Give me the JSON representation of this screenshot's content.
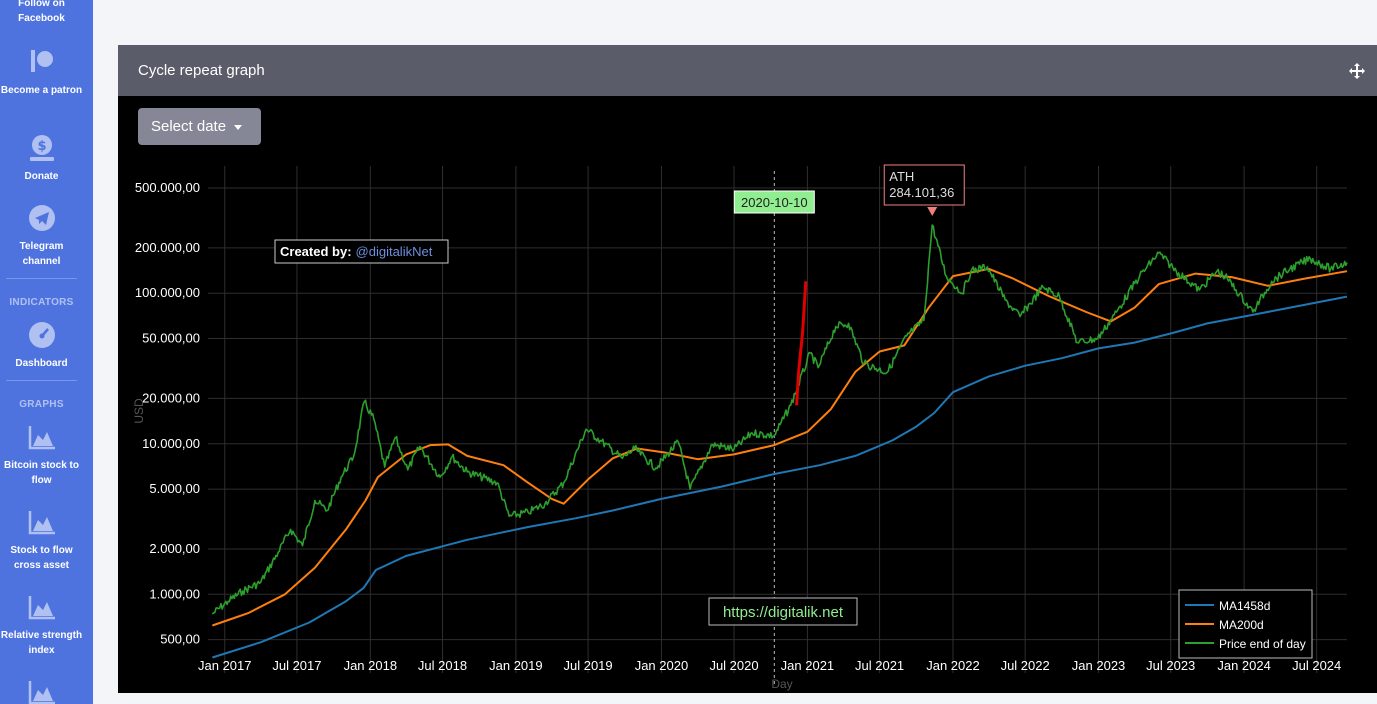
{
  "sidebar": {
    "top_partial": "Follow on\nFacebook",
    "items": [
      {
        "label": "Become a patron",
        "icon": "patreon-icon"
      },
      {
        "label": "Donate",
        "icon": "donate-icon"
      },
      {
        "label": "Telegram channel",
        "icon": "telegram-icon"
      }
    ],
    "indicators_heading": "INDICATORS",
    "indicators": [
      {
        "label": "Dashboard",
        "icon": "dashboard-gauge-icon"
      }
    ],
    "graphs_heading": "GRAPHS",
    "graphs": [
      {
        "label": "Bitcoin stock to flow",
        "icon": "area-chart-icon"
      },
      {
        "label": "Stock to flow cross asset",
        "icon": "area-chart-icon"
      },
      {
        "label": "Relative strength index",
        "icon": "area-chart-icon"
      }
    ]
  },
  "panel": {
    "title": "Cycle repeat graph",
    "select_date_label": "Select date"
  },
  "colors": {
    "sidebar": "#4e73df",
    "ma1458": "#1f77b4",
    "ma200": "#ff7f0e",
    "price": "#2ca02c",
    "projection": "#e00000"
  },
  "chart_data": {
    "type": "line",
    "y_scale": "log",
    "ylabel": "USD",
    "xlabel": "Day",
    "x_range": [
      "2016-11-20",
      "2024-09-15"
    ],
    "y_range": [
      300,
      700000
    ],
    "y_ticks": [
      {
        "value": 500,
        "label": "500,00"
      },
      {
        "value": 1000,
        "label": "1.000,00"
      },
      {
        "value": 2000,
        "label": "2.000,00"
      },
      {
        "value": 5000,
        "label": "5.000,00"
      },
      {
        "value": 10000,
        "label": "10.000,00"
      },
      {
        "value": 20000,
        "label": "20.000,00"
      },
      {
        "value": 50000,
        "label": "50.000,00"
      },
      {
        "value": 100000,
        "label": "100.000,00"
      },
      {
        "value": 200000,
        "label": "200.000,00"
      },
      {
        "value": 500000,
        "label": "500.000,00"
      }
    ],
    "x_ticks": [
      {
        "date": "2017-01-01",
        "label": "Jan 2017"
      },
      {
        "date": "2017-07-01",
        "label": "Jul 2017"
      },
      {
        "date": "2018-01-01",
        "label": "Jan 2018"
      },
      {
        "date": "2018-07-01",
        "label": "Jul 2018"
      },
      {
        "date": "2019-01-01",
        "label": "Jan 2019"
      },
      {
        "date": "2019-07-01",
        "label": "Jul 2019"
      },
      {
        "date": "2020-01-01",
        "label": "Jan 2020"
      },
      {
        "date": "2020-07-01",
        "label": "Jul 2020"
      },
      {
        "date": "2021-01-01",
        "label": "Jan 2021"
      },
      {
        "date": "2021-07-01",
        "label": "Jul 2021"
      },
      {
        "date": "2022-01-01",
        "label": "Jan 2022"
      },
      {
        "date": "2022-07-01",
        "label": "Jul 2022"
      },
      {
        "date": "2023-01-01",
        "label": "Jan 2023"
      },
      {
        "date": "2023-07-01",
        "label": "Jul 2023"
      },
      {
        "date": "2024-01-01",
        "label": "Jan 2024"
      },
      {
        "date": "2024-07-01",
        "label": "Jul 2024"
      }
    ],
    "series": [
      {
        "name": "MA1458d",
        "color": "#1f77b4",
        "points": [
          [
            "2016-12-01",
            380
          ],
          [
            "2017-04-01",
            480
          ],
          [
            "2017-08-01",
            650
          ],
          [
            "2017-11-01",
            900
          ],
          [
            "2017-12-15",
            1100
          ],
          [
            "2018-01-15",
            1450
          ],
          [
            "2018-04-01",
            1800
          ],
          [
            "2018-09-01",
            2300
          ],
          [
            "2019-02-01",
            2800
          ],
          [
            "2019-06-01",
            3200
          ],
          [
            "2019-09-01",
            3600
          ],
          [
            "2020-01-01",
            4300
          ],
          [
            "2020-06-01",
            5200
          ],
          [
            "2020-10-10",
            6300
          ],
          [
            "2021-02-01",
            7200
          ],
          [
            "2021-05-01",
            8300
          ],
          [
            "2021-08-01",
            10500
          ],
          [
            "2021-10-01",
            13000
          ],
          [
            "2021-11-15",
            16000
          ],
          [
            "2022-01-01",
            22000
          ],
          [
            "2022-04-01",
            28000
          ],
          [
            "2022-07-01",
            33000
          ],
          [
            "2022-10-01",
            37000
          ],
          [
            "2023-01-01",
            43000
          ],
          [
            "2023-04-01",
            47000
          ],
          [
            "2023-07-01",
            54000
          ],
          [
            "2023-10-01",
            63000
          ],
          [
            "2024-01-01",
            70000
          ],
          [
            "2024-04-01",
            78000
          ],
          [
            "2024-09-15",
            95000
          ]
        ]
      },
      {
        "name": "MA200d",
        "color": "#ff7f0e",
        "points": [
          [
            "2016-12-01",
            620
          ],
          [
            "2017-03-01",
            750
          ],
          [
            "2017-06-01",
            1000
          ],
          [
            "2017-08-15",
            1500
          ],
          [
            "2017-11-01",
            2700
          ],
          [
            "2017-12-20",
            4200
          ],
          [
            "2018-01-20",
            6000
          ],
          [
            "2018-04-01",
            8500
          ],
          [
            "2018-06-01",
            9800
          ],
          [
            "2018-07-15",
            9900
          ],
          [
            "2018-09-01",
            8300
          ],
          [
            "2018-12-01",
            7200
          ],
          [
            "2019-02-01",
            5500
          ],
          [
            "2019-04-01",
            4300
          ],
          [
            "2019-05-01",
            4000
          ],
          [
            "2019-07-01",
            5800
          ],
          [
            "2019-09-01",
            8000
          ],
          [
            "2019-11-01",
            9300
          ],
          [
            "2020-01-15",
            8700
          ],
          [
            "2020-04-01",
            7900
          ],
          [
            "2020-07-01",
            8500
          ],
          [
            "2020-10-10",
            9800
          ],
          [
            "2021-01-01",
            12000
          ],
          [
            "2021-03-01",
            17000
          ],
          [
            "2021-05-01",
            30000
          ],
          [
            "2021-07-01",
            41000
          ],
          [
            "2021-09-01",
            45000
          ],
          [
            "2021-11-01",
            80000
          ],
          [
            "2022-01-01",
            130000
          ],
          [
            "2022-04-01",
            145000
          ],
          [
            "2022-06-01",
            125000
          ],
          [
            "2022-09-01",
            95000
          ],
          [
            "2022-12-01",
            75000
          ],
          [
            "2023-02-01",
            65000
          ],
          [
            "2023-04-01",
            80000
          ],
          [
            "2023-06-01",
            115000
          ],
          [
            "2023-09-01",
            135000
          ],
          [
            "2023-12-01",
            128000
          ],
          [
            "2024-03-01",
            112000
          ],
          [
            "2024-06-01",
            125000
          ],
          [
            "2024-09-15",
            140000
          ]
        ]
      },
      {
        "name": "Price end of day",
        "color": "#2ca02c",
        "points": [
          [
            "2016-12-01",
            740
          ],
          [
            "2017-01-10",
            900
          ],
          [
            "2017-02-15",
            1050
          ],
          [
            "2017-04-01",
            1200
          ],
          [
            "2017-05-15",
            1900
          ],
          [
            "2017-06-15",
            2700
          ],
          [
            "2017-07-15",
            2100
          ],
          [
            "2017-08-15",
            4200
          ],
          [
            "2017-09-15",
            3600
          ],
          [
            "2017-10-20",
            6000
          ],
          [
            "2017-11-20",
            8200
          ],
          [
            "2017-12-17",
            19000
          ],
          [
            "2018-01-10",
            14500
          ],
          [
            "2018-02-06",
            7000
          ],
          [
            "2018-03-05",
            11000
          ],
          [
            "2018-04-05",
            6700
          ],
          [
            "2018-05-05",
            9600
          ],
          [
            "2018-06-25",
            6000
          ],
          [
            "2018-07-25",
            8200
          ],
          [
            "2018-09-01",
            6500
          ],
          [
            "2018-11-15",
            5500
          ],
          [
            "2018-12-15",
            3300
          ],
          [
            "2019-02-01",
            3500
          ],
          [
            "2019-03-15",
            4000
          ],
          [
            "2019-05-01",
            5500
          ],
          [
            "2019-06-26",
            12500
          ],
          [
            "2019-08-01",
            10500
          ],
          [
            "2019-09-25",
            8000
          ],
          [
            "2019-10-26",
            9300
          ],
          [
            "2019-12-18",
            6900
          ],
          [
            "2020-02-12",
            10300
          ],
          [
            "2020-03-13",
            5000
          ],
          [
            "2020-05-08",
            9900
          ],
          [
            "2020-07-01",
            9200
          ],
          [
            "2020-08-15",
            11800
          ],
          [
            "2020-10-10",
            11300
          ],
          [
            "2020-11-20",
            18000
          ],
          [
            "2021-01-08",
            40000
          ],
          [
            "2021-01-28",
            32000
          ],
          [
            "2021-03-13",
            60000
          ],
          [
            "2021-04-14",
            63000
          ],
          [
            "2021-05-23",
            34000
          ],
          [
            "2021-07-20",
            29800
          ],
          [
            "2021-09-07",
            52000
          ],
          [
            "2021-10-20",
            66000
          ],
          [
            "2021-11-10",
            284101.36
          ],
          [
            "2021-12-15",
            130000
          ],
          [
            "2022-01-24",
            100000
          ],
          [
            "2022-02-15",
            140000
          ],
          [
            "2022-03-28",
            150000
          ],
          [
            "2022-05-12",
            90000
          ],
          [
            "2022-06-18",
            70000
          ],
          [
            "2022-08-15",
            110000
          ],
          [
            "2022-09-25",
            95000
          ],
          [
            "2022-11-09",
            47000
          ],
          [
            "2022-12-30",
            50000
          ],
          [
            "2023-02-15",
            75000
          ],
          [
            "2023-04-14",
            130000
          ],
          [
            "2023-06-01",
            185000
          ],
          [
            "2023-07-15",
            140000
          ],
          [
            "2023-09-11",
            105000
          ],
          [
            "2023-10-25",
            140000
          ],
          [
            "2023-11-20",
            125000
          ],
          [
            "2024-01-23",
            75000
          ],
          [
            "2024-03-10",
            120000
          ],
          [
            "2024-04-25",
            145000
          ],
          [
            "2024-06-15",
            170000
          ],
          [
            "2024-08-05",
            145000
          ],
          [
            "2024-09-15",
            160000
          ]
        ]
      }
    ],
    "projection": {
      "color": "#e00000",
      "points": [
        [
          "2020-12-05",
          18000
        ],
        [
          "2020-12-10",
          30000
        ],
        [
          "2020-12-20",
          55000
        ],
        [
          "2020-12-28",
          120000
        ]
      ]
    },
    "vertical_marker": {
      "date": "2020-10-10",
      "label": "2020-10-10"
    },
    "ath": {
      "date": "2021-11-10",
      "value": 284101.36,
      "label_line1": "ATH",
      "label_line2": "284.101,36"
    },
    "created_by": {
      "label": "Created by:",
      "handle": "@digitalikNet"
    },
    "watermark": "https://digitalik.net"
  }
}
